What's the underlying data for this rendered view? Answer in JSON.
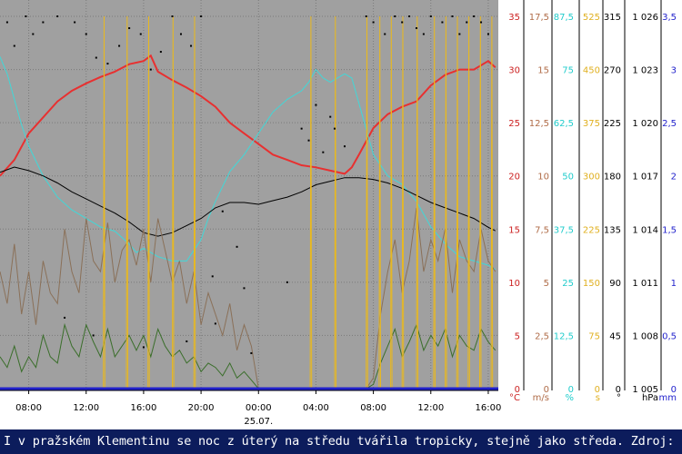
{
  "caption": "I v pražském Klementinu se noc z úterý na středu tvářila tropicky, stejně jako středa. Zdroj: ČHMÚ",
  "chart_data": {
    "type": "line",
    "title": "",
    "x_ticks": [
      "08:00",
      "12:00",
      "16:00",
      "20:00",
      "00:00",
      "04:00",
      "08:00",
      "12:00",
      "16:00"
    ],
    "x_tick_hours": [
      8,
      12,
      16,
      20,
      24,
      28,
      32,
      36,
      40
    ],
    "date_label": "25.07.",
    "x_range_hours": [
      6.0,
      40.7
    ],
    "grid": true,
    "axes": [
      {
        "unit": "°C",
        "color": "#cc2222",
        "min": 0,
        "max": 35,
        "ticks": [
          "35",
          "30",
          "25",
          "20",
          "15",
          "10",
          "5",
          "0"
        ]
      },
      {
        "unit": "m/s",
        "color": "#b06c48",
        "min": 0,
        "max": 17.5,
        "ticks": [
          "17,5",
          "15",
          "12,5",
          "10",
          "7,5",
          "5",
          "2,5",
          "0"
        ]
      },
      {
        "unit": "%",
        "color": "#22cccc",
        "min": 0,
        "max": 87.5,
        "ticks": [
          "87,5",
          "75",
          "62,5",
          "50",
          "37,5",
          "25",
          "12,5",
          "0"
        ]
      },
      {
        "unit": "s",
        "color": "#e0b020",
        "min": 0,
        "max": 525,
        "ticks": [
          "525",
          "450",
          "375",
          "300",
          "225",
          "150",
          "75",
          "0"
        ]
      },
      {
        "unit": "°",
        "color": "#000000",
        "min": 0,
        "max": 315,
        "ticks": [
          "315",
          "270",
          "225",
          "180",
          "135",
          "90",
          "45",
          "0"
        ]
      },
      {
        "unit": "hPa",
        "color": "#000000",
        "min": 1005,
        "max": 1026,
        "ticks": [
          "1 026",
          "1 023",
          "1 020",
          "1 017",
          "1 014",
          "1 011",
          "1 008",
          "1 005"
        ]
      },
      {
        "unit": "mm",
        "color": "#2222cc",
        "min": 0,
        "max": 3.5,
        "ticks": [
          "3,5",
          "3",
          "2,5",
          "2",
          "1,5",
          "1",
          "0,5",
          "0"
        ]
      }
    ],
    "series": [
      {
        "axis": 0,
        "color": "#e83030",
        "x": [
          6,
          7,
          8,
          9,
          10,
          11,
          12,
          13,
          14,
          15,
          16,
          16.5,
          17,
          18,
          19,
          20,
          21,
          22,
          23,
          24,
          25,
          26,
          27,
          28,
          29,
          30,
          30.5,
          31,
          32,
          33,
          34,
          35,
          36,
          37,
          38,
          39,
          40,
          40.5
        ],
        "y": [
          20,
          21.5,
          24,
          25.5,
          27,
          28,
          28.7,
          29.3,
          29.8,
          30.5,
          30.8,
          31.3,
          29.8,
          29,
          28.3,
          27.5,
          26.5,
          25,
          24,
          23,
          22,
          21.5,
          21,
          20.8,
          20.5,
          20.2,
          20.8,
          22,
          24.5,
          25.8,
          26.5,
          27,
          28.5,
          29.5,
          30,
          30,
          30.8,
          30.2
        ]
      },
      {
        "axis": 2,
        "color": "#40d8d8",
        "x": [
          6,
          6.5,
          7,
          7.5,
          8,
          9,
          10,
          11,
          12,
          13,
          14,
          15,
          15.5,
          16,
          17,
          18,
          19,
          20,
          20.5,
          21,
          22,
          23,
          24,
          25,
          26,
          27,
          27.5,
          28,
          28.5,
          29,
          30,
          30.5,
          31,
          32,
          33,
          34,
          35,
          36,
          37,
          38,
          39,
          40,
          40.5
        ],
        "y": [
          78,
          74,
          68,
          62,
          57,
          50,
          45,
          42,
          40,
          38,
          37,
          34,
          32,
          33,
          31,
          30,
          30,
          35,
          40,
          44,
          51,
          55,
          60,
          65,
          68,
          70,
          72,
          75,
          73,
          72,
          74,
          73,
          67,
          55,
          50,
          48,
          44,
          38,
          34,
          31,
          30,
          29,
          28
        ]
      },
      {
        "axis": 5,
        "color": "#000000",
        "x": [
          6,
          7,
          8,
          9,
          10,
          11,
          12,
          13,
          14,
          15,
          16,
          17,
          18,
          19,
          20,
          21,
          22,
          23,
          24,
          25,
          26,
          27,
          28,
          29,
          30,
          31,
          32,
          33,
          34,
          35,
          36,
          37,
          38,
          39,
          40,
          40.5
        ],
        "y": [
          1017.2,
          1017.5,
          1017.3,
          1017,
          1016.6,
          1016.1,
          1015.7,
          1015.3,
          1014.9,
          1014.4,
          1013.8,
          1013.6,
          1013.8,
          1014.2,
          1014.6,
          1015.2,
          1015.5,
          1015.5,
          1015.4,
          1015.6,
          1015.8,
          1016.1,
          1016.5,
          1016.7,
          1016.9,
          1016.9,
          1016.8,
          1016.6,
          1016.3,
          1015.9,
          1015.5,
          1015.2,
          1014.9,
          1014.6,
          1014.1,
          1013.9
        ]
      },
      {
        "axis": 1,
        "color": "#8a7058",
        "x": [
          6,
          6.5,
          7,
          7.5,
          8,
          8.5,
          9,
          9.5,
          10,
          10.5,
          11,
          11.5,
          12,
          12.5,
          13,
          13.5,
          14,
          14.5,
          15,
          15.5,
          16,
          16.5,
          17,
          17.5,
          18,
          18.5,
          19,
          19.5,
          20,
          20.5,
          21,
          21.5,
          22,
          22.5,
          23,
          23.5,
          24,
          26,
          28,
          29,
          30,
          30.5,
          31,
          31.5,
          32,
          32.5,
          33,
          33.5,
          34,
          34.5,
          35,
          35.5,
          36,
          36.5,
          37,
          37.5,
          38,
          38.5,
          39,
          39.5,
          40,
          40.5
        ],
        "y": [
          5.5,
          4,
          6.8,
          3.5,
          5.5,
          3,
          6,
          4.5,
          4,
          7.5,
          5.5,
          4.5,
          8,
          6,
          5.5,
          7.8,
          5,
          6.5,
          7,
          5.8,
          7.5,
          5,
          8,
          6.5,
          5,
          6,
          4,
          5.5,
          3,
          4.5,
          3.5,
          2.5,
          4,
          1.8,
          3,
          2,
          0,
          0,
          0,
          0,
          0,
          0,
          0,
          0,
          0.5,
          3.5,
          5.5,
          7,
          4.5,
          6,
          8.5,
          5.5,
          7,
          6,
          7.5,
          4.5,
          7,
          6,
          5.5,
          7.5,
          6,
          5.5
        ]
      },
      {
        "axis": 1,
        "color": "#3a6e2a",
        "x": [
          6,
          6.5,
          7,
          7.5,
          8,
          8.5,
          9,
          9.5,
          10,
          10.5,
          11,
          11.5,
          12,
          12.5,
          13,
          13.5,
          14,
          14.5,
          15,
          15.5,
          16,
          16.5,
          17,
          17.5,
          18,
          18.5,
          19,
          19.5,
          20,
          20.5,
          21,
          21.5,
          22,
          22.5,
          23,
          23.5,
          24,
          26,
          28,
          29,
          30,
          30.5,
          31,
          31.5,
          32,
          32.5,
          33,
          33.5,
          34,
          34.5,
          35,
          35.5,
          36,
          36.5,
          37,
          37.5,
          38,
          38.5,
          39,
          39.5,
          40,
          40.5
        ],
        "y": [
          1.5,
          1,
          2,
          0.8,
          1.5,
          1,
          2.5,
          1.5,
          1.2,
          3,
          2,
          1.5,
          3,
          2.2,
          1.5,
          2.8,
          1.5,
          2,
          2.5,
          1.8,
          2.5,
          1.5,
          2.8,
          2,
          1.5,
          1.8,
          1.2,
          1.5,
          0.8,
          1.2,
          1,
          0.6,
          1.2,
          0.5,
          0.8,
          0.4,
          0,
          0,
          0,
          0,
          0,
          0,
          0,
          0,
          0.2,
          1.2,
          2,
          2.8,
          1.5,
          2.2,
          3,
          1.8,
          2.5,
          2,
          2.8,
          1.5,
          2.5,
          2,
          1.8,
          2.8,
          2.2,
          1.8
        ]
      },
      {
        "axis": 3,
        "color": "#e8b820",
        "x": [
          13.2,
          13.25,
          13.3,
          14.8,
          14.85,
          14.9,
          16.3,
          16.35,
          16.4,
          18,
          18.05,
          18.1,
          19.5,
          19.55,
          19.6,
          27.6,
          27.65,
          27.7,
          29.3,
          29.35,
          29.4,
          31.5,
          31.55,
          31.6,
          32.4,
          32.45,
          32.5,
          33.2,
          33.25,
          33.3,
          34,
          34.05,
          34.1,
          35,
          35.05,
          35.1,
          36.2,
          36.25,
          36.3,
          37,
          37.05,
          37.1,
          37.8,
          37.85,
          37.9,
          38.6,
          38.65,
          38.7,
          39.4,
          39.45,
          39.5,
          40.2,
          40.25,
          40.3
        ],
        "y": [
          0,
          525,
          0,
          0,
          525,
          0,
          0,
          525,
          0,
          0,
          525,
          0,
          0,
          525,
          0,
          0,
          525,
          0,
          0,
          525,
          0,
          0,
          525,
          0,
          0,
          525,
          0,
          0,
          525,
          0,
          0,
          525,
          0,
          0,
          525,
          0,
          0,
          525,
          0,
          0,
          525,
          0,
          0,
          525,
          0,
          0,
          525,
          0,
          0,
          525,
          0,
          0,
          525,
          0
        ]
      },
      {
        "axis": 4,
        "color": "#000000",
        "type": "scatter",
        "x": [
          6.5,
          7,
          7.8,
          8.3,
          9,
          10,
          11.2,
          12,
          12.7,
          13.5,
          14.3,
          15,
          15.8,
          16.5,
          17.2,
          18,
          18.6,
          19.3,
          20,
          20.8,
          21.5,
          22.5,
          23,
          27,
          27.5,
          28,
          28.5,
          29,
          29.3,
          30,
          31.5,
          32,
          32.8,
          33.5,
          34,
          34.5,
          35,
          35.5,
          36,
          36.8,
          37.5,
          38,
          38.5,
          39,
          39.5,
          40,
          10.5,
          12.5,
          16,
          19,
          21,
          23.5,
          26
        ],
        "y": [
          310,
          290,
          315,
          300,
          310,
          315,
          310,
          300,
          280,
          275,
          290,
          305,
          300,
          270,
          285,
          315,
          300,
          290,
          315,
          95,
          150,
          120,
          85,
          220,
          210,
          240,
          200,
          230,
          220,
          205,
          315,
          310,
          300,
          315,
          310,
          315,
          305,
          300,
          315,
          310,
          315,
          300,
          310,
          315,
          310,
          300,
          60,
          45,
          35,
          40,
          55,
          30,
          90
        ]
      },
      {
        "axis": 6,
        "color": "#2222cc",
        "x": [
          6,
          40.7
        ],
        "y": [
          0,
          0
        ]
      }
    ]
  }
}
